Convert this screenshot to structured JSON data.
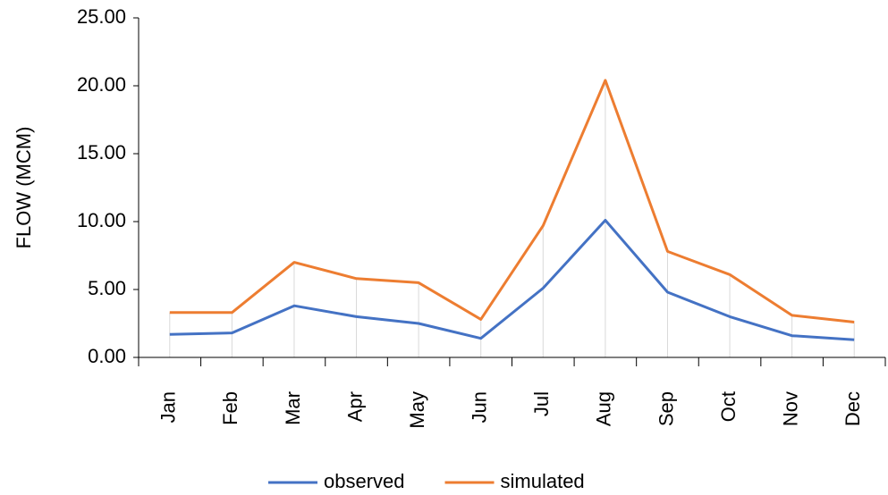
{
  "chart_data": {
    "type": "line",
    "y_label": "FLOW (MCM)",
    "categories": [
      "Jan",
      "Feb",
      "Mar",
      "Apr",
      "May",
      "Jun",
      "Jul",
      "Aug",
      "Sep",
      "Oct",
      "Nov",
      "Dec"
    ],
    "series": [
      {
        "name": "observed",
        "color": "#4472c4",
        "values": [
          1.7,
          1.8,
          3.8,
          3.0,
          2.5,
          1.4,
          5.1,
          10.1,
          4.8,
          3.0,
          1.6,
          1.3
        ]
      },
      {
        "name": "simulated",
        "color": "#ed7d31",
        "values": [
          3.3,
          3.3,
          7.0,
          5.8,
          5.5,
          2.8,
          9.7,
          20.4,
          7.8,
          6.1,
          3.1,
          2.6
        ]
      }
    ],
    "ylim": [
      0,
      25
    ],
    "yticks": [
      {
        "value": 0,
        "label": "0.00"
      },
      {
        "value": 5,
        "label": "5.00"
      },
      {
        "value": 10,
        "label": "10.00"
      },
      {
        "value": 15,
        "label": "15.00"
      },
      {
        "value": 20,
        "label": "20.00"
      },
      {
        "value": 25,
        "label": "25.00"
      }
    ],
    "legend": "bottom",
    "grid": false
  }
}
